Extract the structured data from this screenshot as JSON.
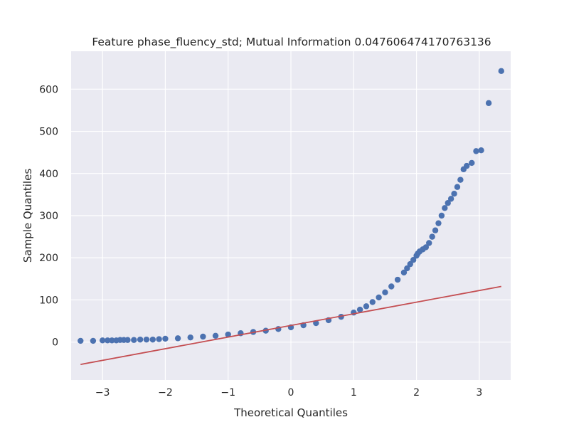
{
  "chart_data": {
    "type": "scatter",
    "title": "Feature phase_fluency_std; Mutual Information 0.047606474170763136",
    "xlabel": "Theoretical Quantiles",
    "ylabel": "Sample Quantiles",
    "xlim": [
      -3.5,
      3.5
    ],
    "ylim": [
      -90,
      690
    ],
    "xticks": [
      -3,
      -2,
      -1,
      0,
      1,
      2,
      3
    ],
    "xtick_labels": [
      "−3",
      "−2",
      "−1",
      "0",
      "1",
      "2",
      "3"
    ],
    "yticks": [
      0,
      100,
      200,
      300,
      400,
      500,
      600
    ],
    "ytick_labels": [
      "0",
      "100",
      "200",
      "300",
      "400",
      "500",
      "600"
    ],
    "grid": true,
    "background_color": "#eaeaf2",
    "point_color": "#4c72b0",
    "line_color": "#c44e52",
    "series": [
      {
        "type": "scatter",
        "x": [
          -3.35,
          -3.15,
          -3.0,
          -2.92,
          -2.85,
          -2.78,
          -2.72,
          -2.66,
          -2.6,
          -2.5,
          -2.4,
          -2.3,
          -2.2,
          -2.1,
          -2.0,
          -1.8,
          -1.6,
          -1.4,
          -1.2,
          -1.0,
          -0.8,
          -0.6,
          -0.4,
          -0.2,
          0.0,
          0.2,
          0.4,
          0.6,
          0.8,
          1.0,
          1.1,
          1.2,
          1.3,
          1.4,
          1.5,
          1.6,
          1.7,
          1.8,
          1.85,
          1.9,
          1.95,
          2.0,
          2.02,
          2.05,
          2.1,
          2.15,
          2.2,
          2.25,
          2.3,
          2.35,
          2.4,
          2.45,
          2.5,
          2.55,
          2.6,
          2.65,
          2.7,
          2.75,
          2.8,
          2.88,
          2.95,
          3.03,
          3.15,
          3.35
        ],
        "y": [
          3,
          3,
          4,
          4,
          4,
          4,
          5,
          5,
          5,
          5,
          6,
          6,
          6,
          7,
          8,
          9,
          11,
          13,
          15,
          18,
          21,
          24,
          27,
          31,
          35,
          40,
          45,
          52,
          60,
          70,
          77,
          85,
          95,
          106,
          118,
          132,
          148,
          165,
          175,
          185,
          195,
          205,
          210,
          215,
          220,
          225,
          235,
          250,
          265,
          282,
          300,
          318,
          330,
          340,
          352,
          368,
          385,
          410,
          418,
          425,
          453,
          455,
          567,
          643
        ]
      },
      {
        "type": "line",
        "x": [
          -3.35,
          3.35
        ],
        "y": [
          -53,
          132
        ]
      }
    ]
  }
}
